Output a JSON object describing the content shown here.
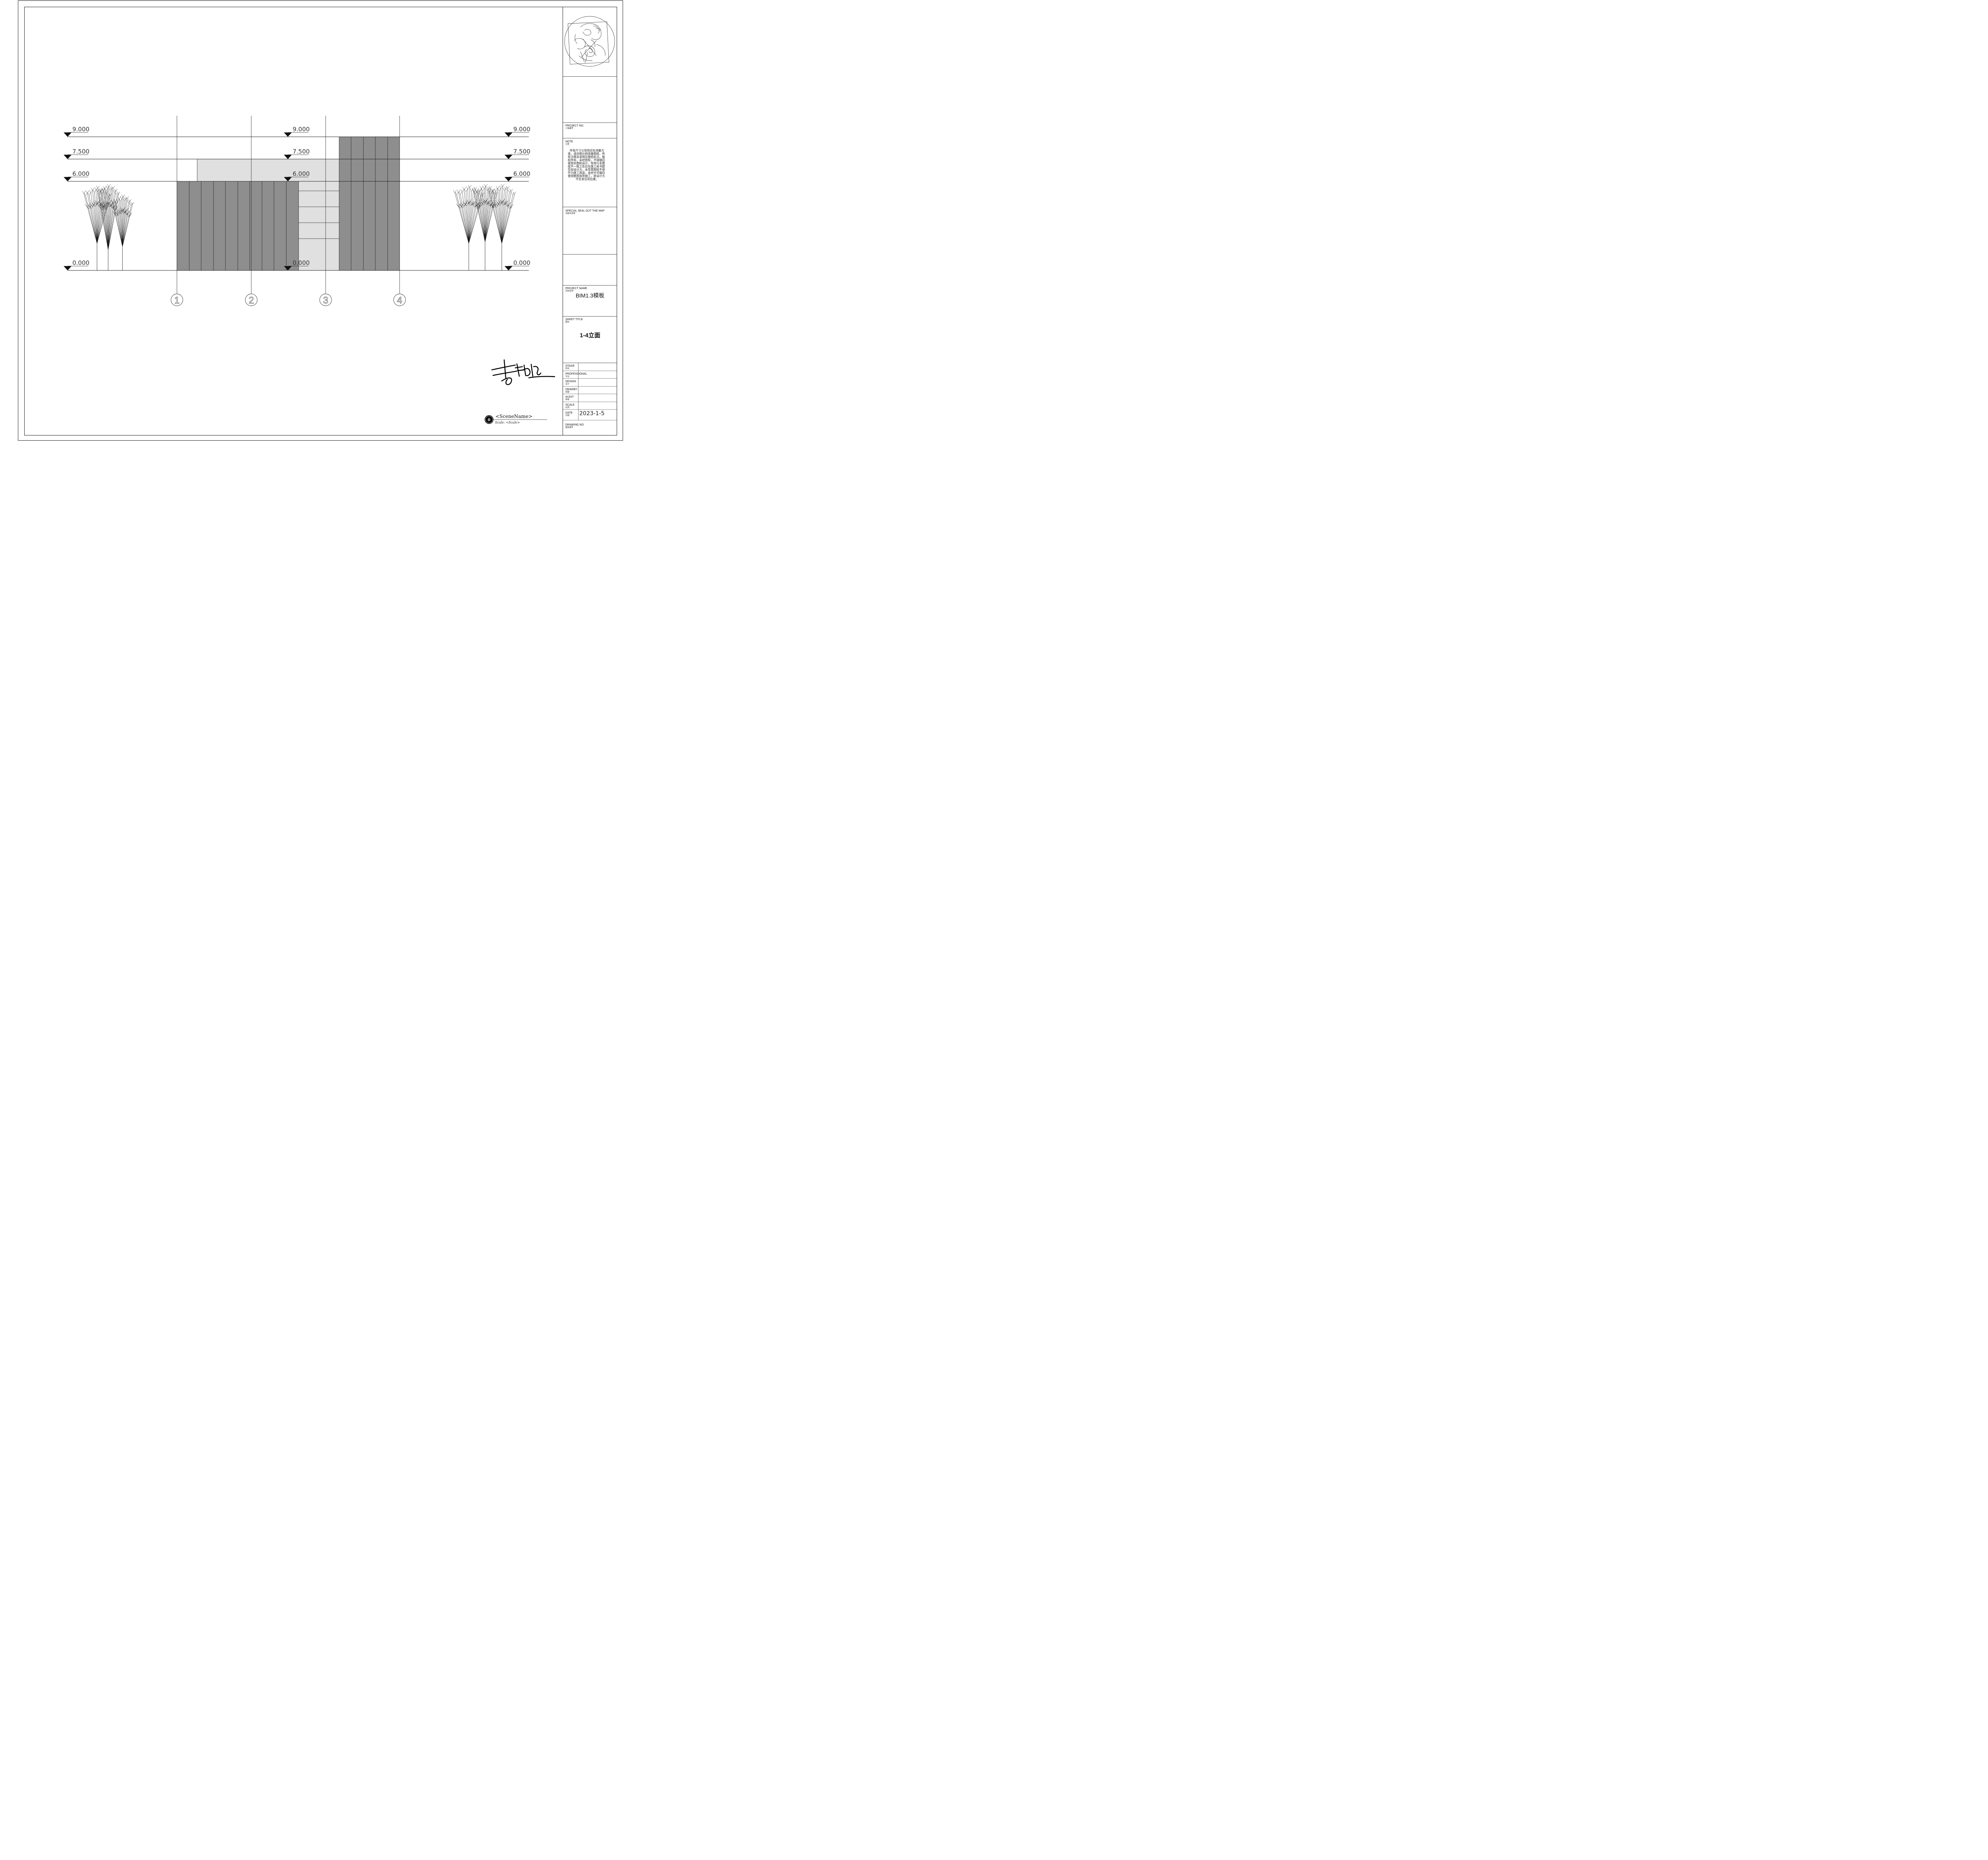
{
  "elevation": {
    "levels": [
      {
        "label": "9.000",
        "value": 9.0
      },
      {
        "label": "7.500",
        "value": 7.5
      },
      {
        "label": "6.000",
        "value": 6.0
      },
      {
        "label": "0.000",
        "value": 0.0
      }
    ],
    "grids": [
      "1",
      "2",
      "3",
      "4"
    ]
  },
  "scene": {
    "marker": "0",
    "name": "<SceneName>",
    "scale_text": "Scale: <Scale>"
  },
  "title_block": {
    "project_no": {
      "en": "PROJECT NO.",
      "cn": "工程编号"
    },
    "note": {
      "en": "NOTE",
      "cn": "注意",
      "lines": [
        "所有尺寸以现场实际测量为",
        "准，请勿按比例测量图纸，所",
        "有注释及说明见图纸标注。版",
        "权所有，未经授权，不得擅自",
        "使用本图和设计。现场与本图",
        "纸不一致之处应在施工前书面",
        "告知设计方。未签章图纸不得",
        "作为施工用途，未经许可擅自",
        "使用图纸指导施工，原设计方",
        "不负责任何后果。"
      ]
    },
    "seal": {
      "en": "SPECIAL SEAL OUT THE MAP",
      "cn": "出图专用章"
    },
    "project_name": {
      "en": "PROJECT NAME",
      "cn": "项目名称",
      "value": "BIM1.3模板"
    },
    "sheet_title": {
      "en": "SHEET TITLE",
      "cn": "图名",
      "value": "1-4立面"
    },
    "rows": [
      {
        "en": "STAGE",
        "cn": "阶段",
        "value": ""
      },
      {
        "en": "PROFESSIONAL",
        "cn": "专业",
        "value": ""
      },
      {
        "en": "DESIGN",
        "cn": "设计",
        "value": ""
      },
      {
        "en": "DRAWBY",
        "cn": "绘图",
        "value": ""
      },
      {
        "en": "AUDIT",
        "cn": "审核",
        "value": ""
      },
      {
        "en": "SCALE",
        "cn": "比例",
        "value": ""
      },
      {
        "en": "DATE",
        "cn": "日期",
        "value": "2023-1-5"
      }
    ],
    "drawing_no": {
      "en": "DRAWING NO.",
      "cn": "图纸编号"
    }
  }
}
